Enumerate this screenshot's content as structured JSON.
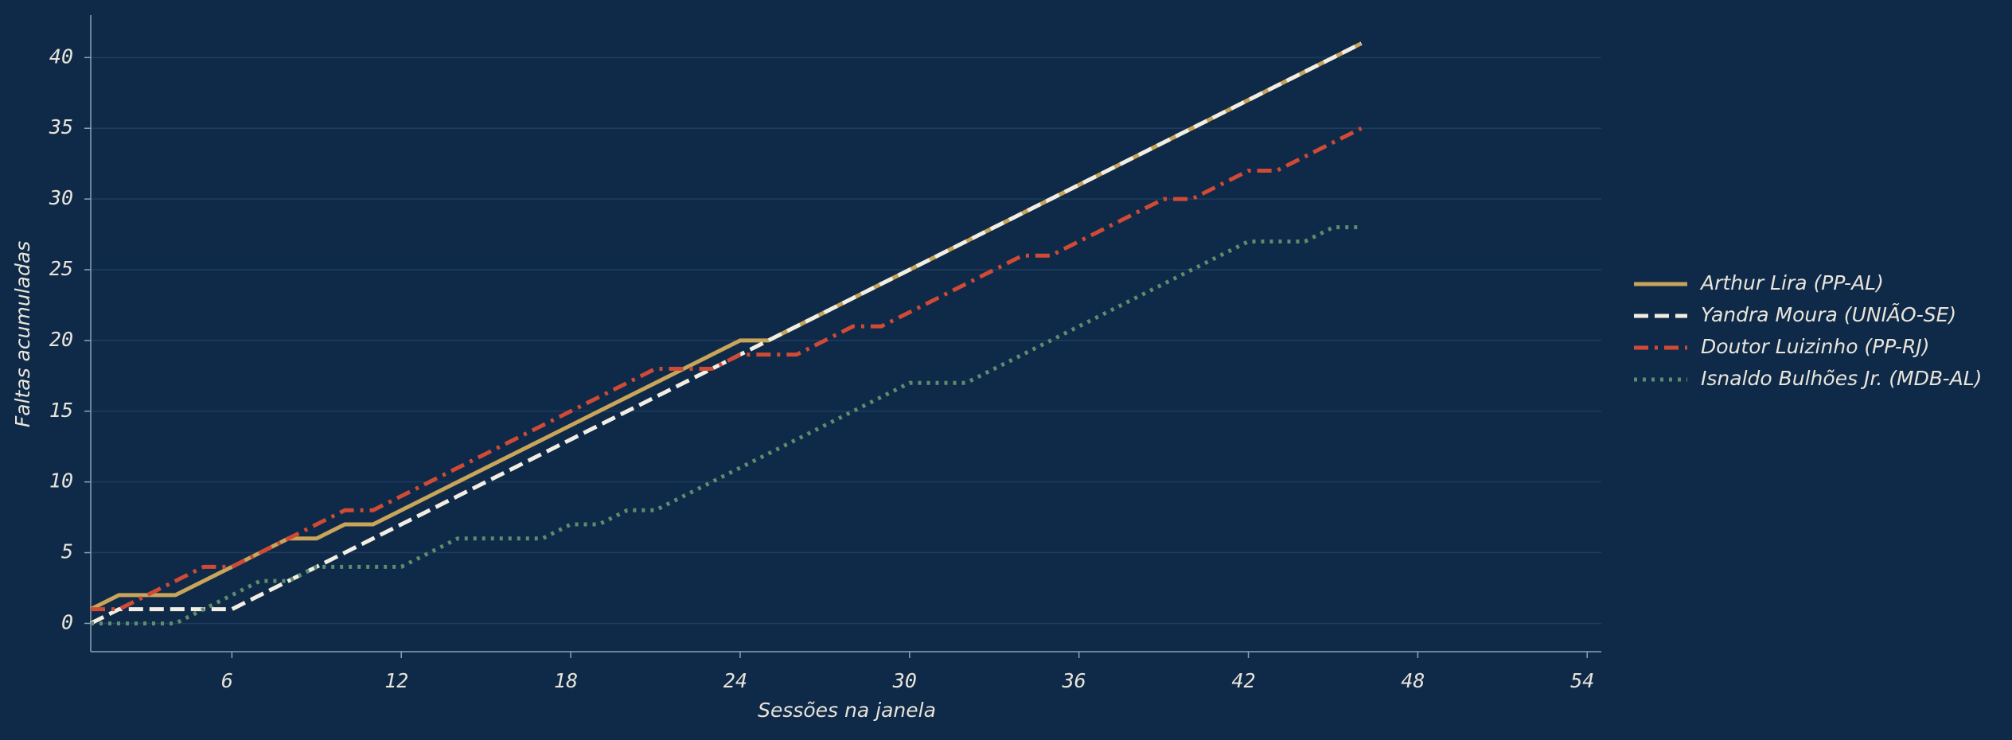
{
  "chart_data": {
    "type": "line",
    "x_label": "Sessões na janela",
    "y_label": "Faltas acumuladas",
    "x": [
      1,
      2,
      3,
      4,
      5,
      6,
      7,
      8,
      9,
      10,
      11,
      12,
      13,
      14,
      15,
      16,
      17,
      18,
      19,
      20,
      21,
      22,
      23,
      24,
      25,
      26,
      27,
      28,
      29,
      30,
      31,
      32,
      33,
      34,
      35,
      36,
      37,
      38,
      39,
      40,
      41,
      42,
      43,
      44,
      45,
      46
    ],
    "series": [
      {
        "name": "Arthur Lira (PP-AL)",
        "color": "#c9a55a",
        "style": "solid",
        "values": [
          1,
          2,
          2,
          2,
          3,
          4,
          5,
          6,
          6,
          7,
          7,
          8,
          9,
          10,
          11,
          12,
          13,
          14,
          15,
          16,
          17,
          18,
          19,
          20,
          20,
          21,
          22,
          23,
          24,
          25,
          26,
          27,
          28,
          29,
          30,
          31,
          32,
          33,
          34,
          35,
          36,
          37,
          38,
          39,
          40,
          41
        ]
      },
      {
        "name": "Yandra Moura (UNIÃO-SE)",
        "color": "#f2eee4",
        "style": "dashed",
        "values": [
          0,
          1,
          1,
          1,
          1,
          1,
          2,
          3,
          4,
          5,
          6,
          7,
          8,
          9,
          10,
          11,
          12,
          13,
          14,
          15,
          16,
          17,
          18,
          19,
          20,
          21,
          22,
          23,
          24,
          25,
          26,
          27,
          28,
          29,
          30,
          31,
          32,
          33,
          34,
          35,
          36,
          37,
          38,
          39,
          40,
          41
        ]
      },
      {
        "name": "Doutor Luizinho (PP-RJ)",
        "color": "#d04a35",
        "style": "dashdot",
        "values": [
          1,
          1,
          2,
          3,
          4,
          4,
          5,
          6,
          7,
          8,
          8,
          9,
          10,
          11,
          12,
          13,
          14,
          15,
          16,
          17,
          18,
          18,
          18,
          19,
          19,
          19,
          20,
          21,
          21,
          22,
          23,
          24,
          25,
          26,
          26,
          27,
          28,
          29,
          30,
          30,
          31,
          32,
          32,
          33,
          34,
          35
        ]
      },
      {
        "name": "Isnaldo Bulhões Jr. (MDB-AL)",
        "color": "#5e8c6c",
        "style": "dotted",
        "values": [
          0,
          0,
          0,
          0,
          1,
          2,
          3,
          3,
          4,
          4,
          4,
          4,
          5,
          6,
          6,
          6,
          6,
          7,
          7,
          8,
          8,
          9,
          10,
          11,
          12,
          13,
          14,
          15,
          16,
          17,
          17,
          17,
          18,
          19,
          20,
          21,
          22,
          23,
          24,
          25,
          26,
          27,
          27,
          27,
          28,
          28
        ]
      }
    ],
    "xlim": [
      1,
      54.5
    ],
    "xticks": [
      6,
      12,
      18,
      24,
      30,
      36,
      42,
      48,
      54
    ],
    "ylim": [
      -2,
      43
    ],
    "yticks": [
      0,
      5,
      10,
      15,
      20,
      25,
      30,
      35,
      40
    ],
    "grid": true,
    "legend": "right"
  }
}
